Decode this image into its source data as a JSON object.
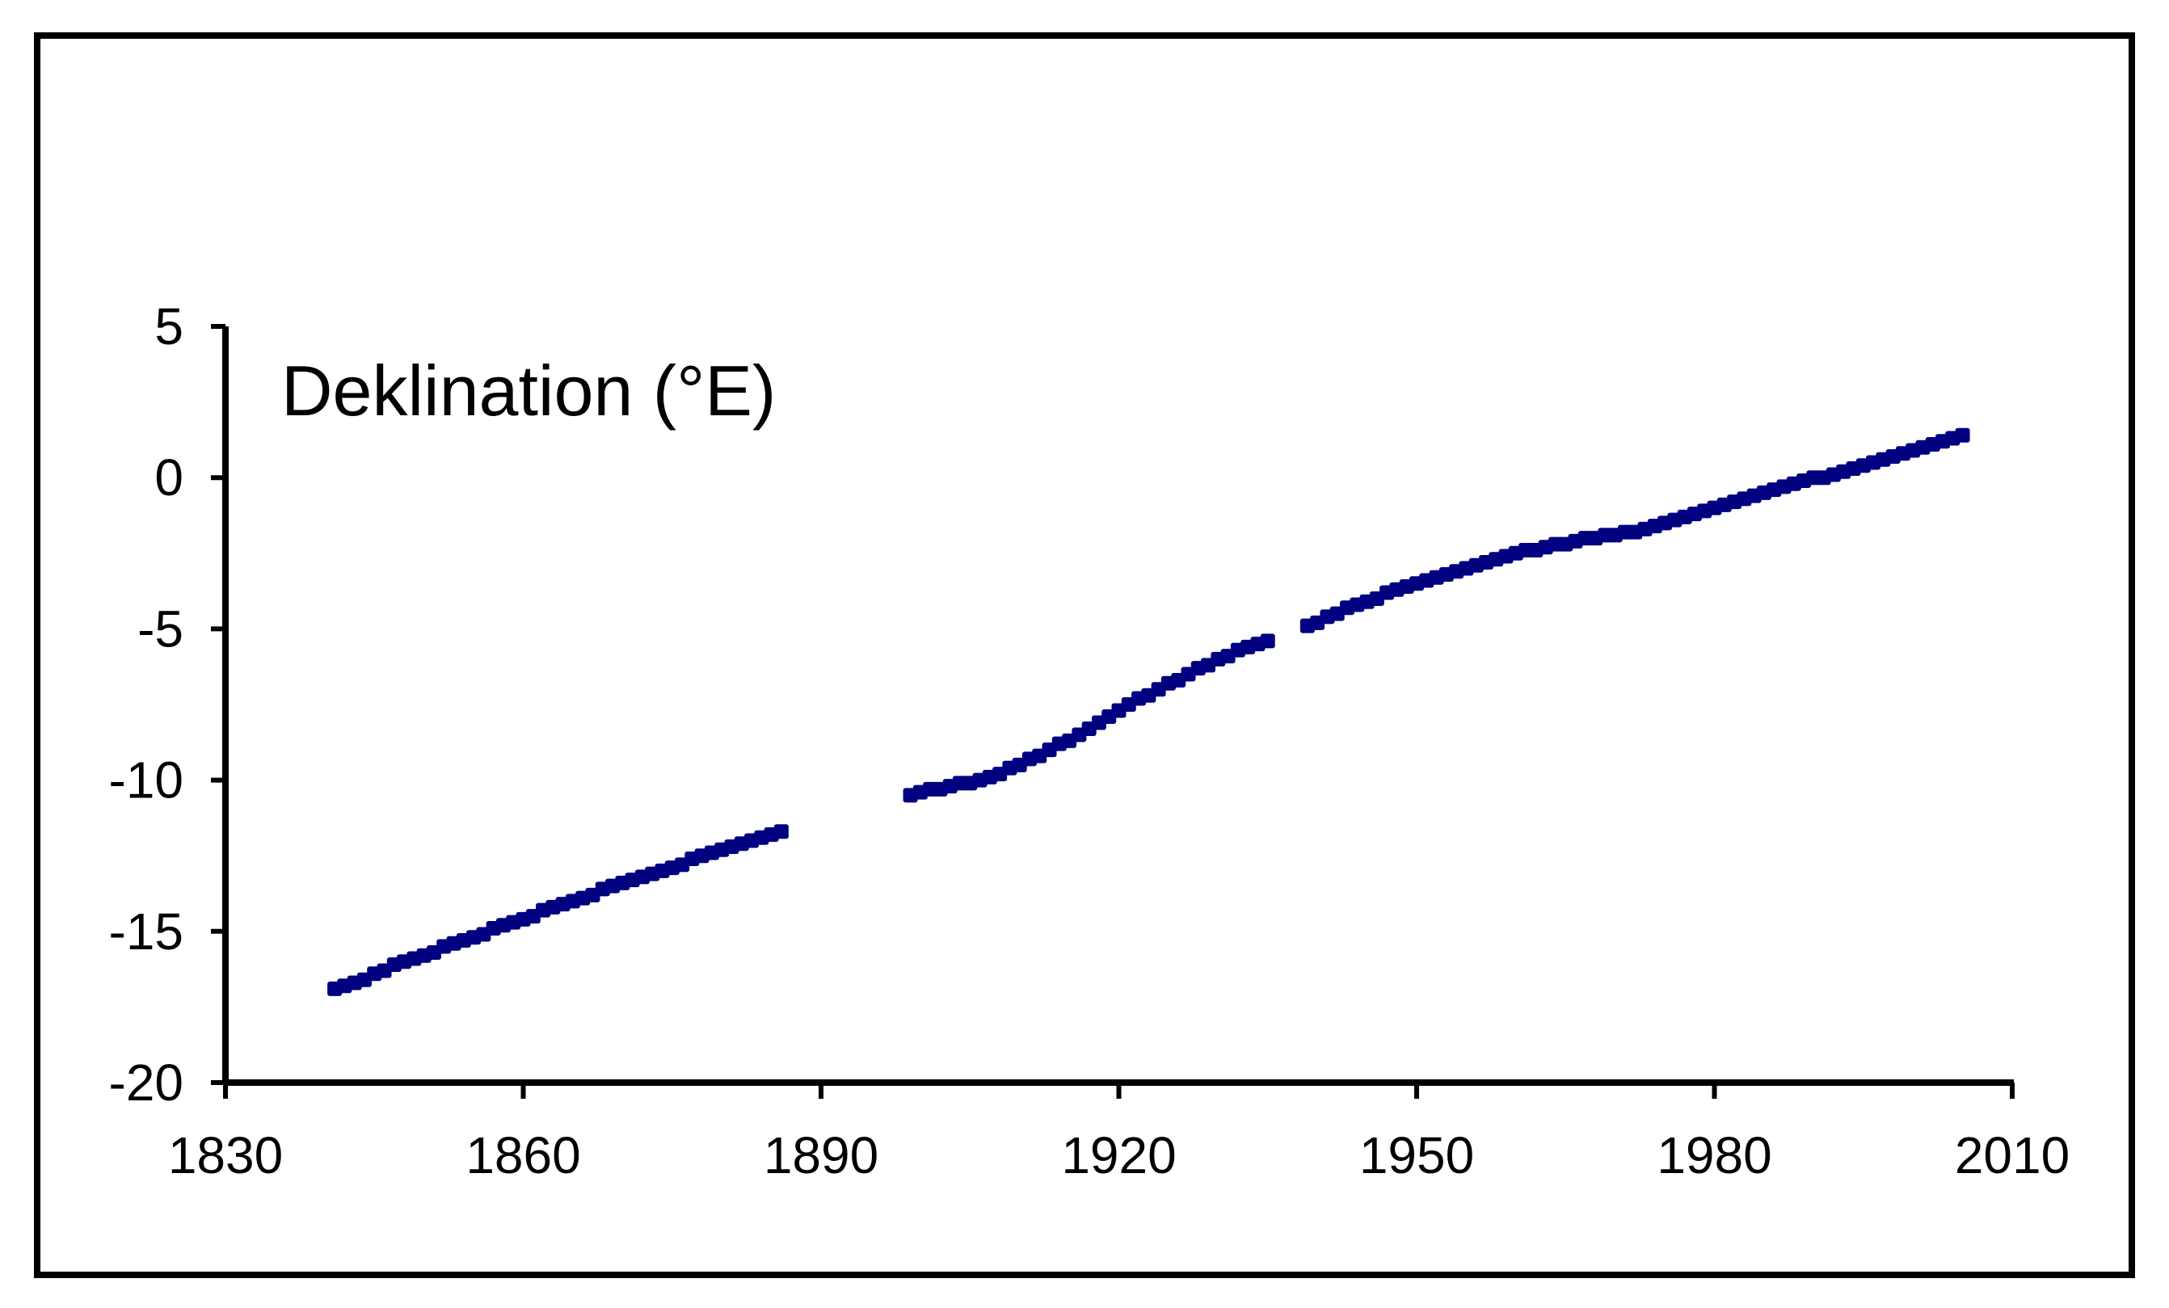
{
  "chart_data": {
    "type": "scatter",
    "inner_label": "Deklination (°E)",
    "xlim": [
      1830,
      2010
    ],
    "ylim": [
      -20,
      5
    ],
    "x_ticks": [
      1830,
      1860,
      1890,
      1920,
      1950,
      1980,
      2010
    ],
    "y_ticks": [
      5,
      0,
      -5,
      -10,
      -15,
      -20
    ],
    "x_tick_labels": [
      "1830",
      "1860",
      "1890",
      "1920",
      "1950",
      "1980",
      "2010"
    ],
    "y_tick_labels": [
      "5",
      "0",
      "-5",
      "-10",
      "-15",
      "-20"
    ],
    "marker_color": "#000080",
    "frame": true,
    "grid": false,
    "series": [
      {
        "x": [
          1841,
          1842,
          1843,
          1844,
          1845,
          1846,
          1847,
          1848,
          1849,
          1850,
          1851,
          1852,
          1853,
          1854,
          1855,
          1856,
          1857,
          1858,
          1859,
          1860,
          1861,
          1862,
          1863,
          1864,
          1865,
          1866,
          1867,
          1868,
          1869,
          1870,
          1871,
          1872,
          1873,
          1874,
          1875,
          1876,
          1877,
          1878,
          1879,
          1880,
          1881,
          1882,
          1883,
          1884,
          1885,
          1886,
          1899,
          1900,
          1901,
          1902,
          1903,
          1904,
          1905,
          1906,
          1907,
          1908,
          1909,
          1910,
          1911,
          1912,
          1913,
          1914,
          1915,
          1916,
          1917,
          1918,
          1919,
          1920,
          1921,
          1922,
          1923,
          1924,
          1925,
          1926,
          1927,
          1928,
          1929,
          1930,
          1931,
          1932,
          1933,
          1934,
          1935,
          1939,
          1940,
          1941,
          1942,
          1943,
          1944,
          1945,
          1946,
          1947,
          1948,
          1949,
          1950,
          1951,
          1952,
          1953,
          1954,
          1955,
          1956,
          1957,
          1958,
          1959,
          1960,
          1961,
          1962,
          1963,
          1964,
          1965,
          1966,
          1967,
          1968,
          1969,
          1970,
          1971,
          1972,
          1973,
          1974,
          1975,
          1976,
          1977,
          1978,
          1979,
          1980,
          1981,
          1982,
          1983,
          1984,
          1985,
          1986,
          1987,
          1988,
          1989,
          1990,
          1991,
          1992,
          1993,
          1994,
          1995,
          1996,
          1997,
          1998,
          1999,
          2000,
          2001,
          2002,
          2003,
          2004,
          2005
        ],
        "y": [
          -16.9,
          -16.8,
          -16.7,
          -16.6,
          -16.4,
          -16.3,
          -16.1,
          -16.0,
          -15.9,
          -15.8,
          -15.7,
          -15.5,
          -15.4,
          -15.3,
          -15.2,
          -15.1,
          -14.9,
          -14.8,
          -14.7,
          -14.6,
          -14.5,
          -14.3,
          -14.2,
          -14.1,
          -14.0,
          -13.9,
          -13.8,
          -13.6,
          -13.5,
          -13.4,
          -13.3,
          -13.2,
          -13.1,
          -13.0,
          -12.9,
          -12.8,
          -12.6,
          -12.5,
          -12.4,
          -12.3,
          -12.2,
          -12.1,
          -12.0,
          -11.9,
          -11.8,
          -11.7,
          -10.5,
          -10.4,
          -10.3,
          -10.3,
          -10.2,
          -10.1,
          -10.1,
          -10.0,
          -9.9,
          -9.8,
          -9.6,
          -9.5,
          -9.3,
          -9.2,
          -9.0,
          -8.8,
          -8.7,
          -8.5,
          -8.3,
          -8.1,
          -7.9,
          -7.7,
          -7.5,
          -7.3,
          -7.2,
          -7.0,
          -6.8,
          -6.7,
          -6.5,
          -6.3,
          -6.2,
          -6.0,
          -5.9,
          -5.7,
          -5.6,
          -5.5,
          -5.4,
          -4.9,
          -4.8,
          -4.6,
          -4.5,
          -4.3,
          -4.2,
          -4.1,
          -4.0,
          -3.8,
          -3.7,
          -3.6,
          -3.5,
          -3.4,
          -3.3,
          -3.2,
          -3.1,
          -3.0,
          -2.9,
          -2.8,
          -2.7,
          -2.6,
          -2.5,
          -2.4,
          -2.4,
          -2.3,
          -2.2,
          -2.2,
          -2.1,
          -2.0,
          -2.0,
          -1.9,
          -1.9,
          -1.8,
          -1.8,
          -1.7,
          -1.6,
          -1.5,
          -1.4,
          -1.3,
          -1.2,
          -1.1,
          -1.0,
          -0.9,
          -0.8,
          -0.7,
          -0.6,
          -0.5,
          -0.4,
          -0.3,
          -0.2,
          -0.1,
          0.0,
          0.0,
          0.1,
          0.2,
          0.3,
          0.4,
          0.5,
          0.6,
          0.7,
          0.8,
          0.9,
          1.0,
          1.1,
          1.2,
          1.3,
          1.4
        ]
      }
    ]
  }
}
